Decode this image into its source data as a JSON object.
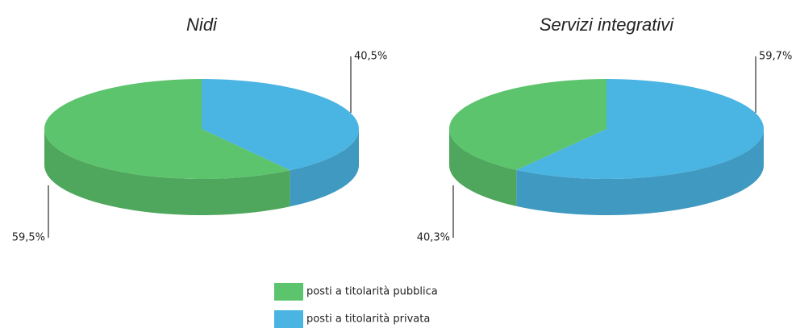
{
  "chart_data": [
    {
      "type": "pie",
      "title": "Nidi",
      "categories": [
        "posti a titolarità pubblica",
        "posti a titolarità privata"
      ],
      "values": [
        59.5,
        40.5
      ],
      "value_labels": [
        "59,5%",
        "40,5%"
      ],
      "colors": [
        "#5cc46c",
        "#4ab4e2"
      ]
    },
    {
      "type": "pie",
      "title": "Servizi integrativi",
      "categories": [
        "posti a titolarità pubblica",
        "posti a titolarità privata"
      ],
      "values": [
        40.3,
        59.7
      ],
      "value_labels": [
        "40,3%",
        "59,7%"
      ],
      "colors": [
        "#5cc46c",
        "#4ab4e2"
      ]
    }
  ]
}
